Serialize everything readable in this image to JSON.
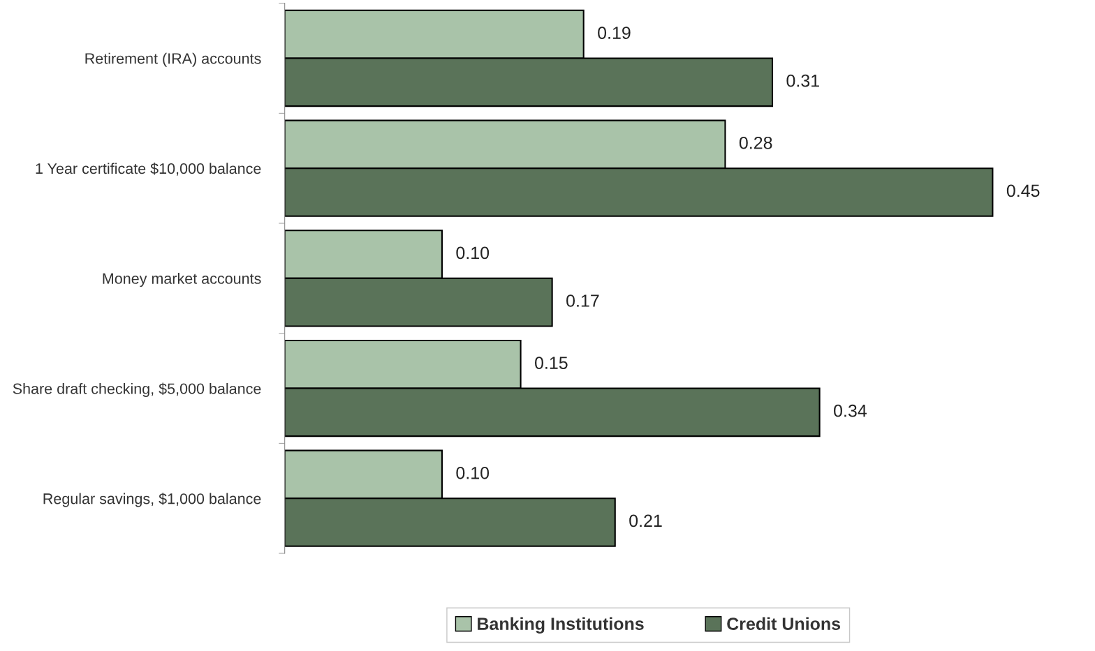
{
  "chart_data": {
    "type": "bar",
    "orientation": "horizontal",
    "categories": [
      "Retirement (IRA) accounts",
      "1 Year certificate $10,000 balance",
      "Money market accounts",
      "Share draft checking, $5,000 balance",
      "Regular savings, $1,000 balance"
    ],
    "series": [
      {
        "name": "Banking Institutions",
        "color": "#a9c3a9",
        "values": [
          0.19,
          0.28,
          0.1,
          0.15,
          0.1
        ],
        "value_labels": [
          "0.19",
          "0.28",
          "0.10",
          "0.15",
          "0.10"
        ]
      },
      {
        "name": "Credit Unions",
        "color": "#5a7359",
        "values": [
          0.31,
          0.45,
          0.17,
          0.34,
          0.21
        ],
        "value_labels": [
          "0.31",
          "0.45",
          "0.17",
          "0.34",
          "0.21"
        ]
      }
    ],
    "legend": "bottom",
    "grid": false
  }
}
